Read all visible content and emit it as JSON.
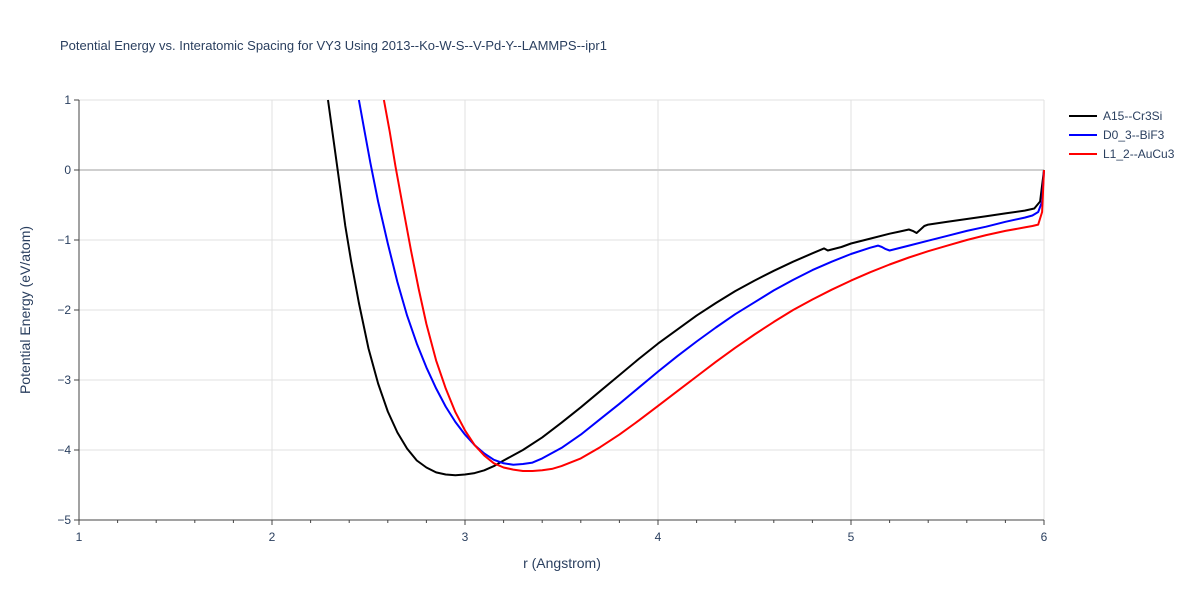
{
  "chart_data": {
    "type": "line",
    "title": "Potential Energy vs. Interatomic Spacing for VY3 Using 2013--Ko-W-S--V-Pd-Y--LAMMPS--ipr1",
    "xlabel": "r (Angstrom)",
    "ylabel": "Potential Energy (eV/atom)",
    "xlim": [
      1,
      6
    ],
    "ylim": [
      -5,
      1
    ],
    "xticks": [
      1,
      2,
      3,
      4,
      5,
      6
    ],
    "xtick_labels": [
      "1",
      "2",
      "3",
      "4",
      "5",
      "6"
    ],
    "yticks": [
      1,
      0,
      -1,
      -2,
      -3,
      -4,
      -5
    ],
    "ytick_labels": [
      "1",
      "0",
      "−1",
      "−2",
      "−3",
      "−4",
      "−5"
    ],
    "grid": true,
    "legend_position": "top-right",
    "series": [
      {
        "name": "A15--Cr3Si",
        "color": "#000000",
        "x": [
          2.29,
          2.32,
          2.35,
          2.38,
          2.41,
          2.45,
          2.5,
          2.55,
          2.6,
          2.65,
          2.7,
          2.75,
          2.8,
          2.85,
          2.9,
          2.95,
          3.0,
          3.05,
          3.1,
          3.15,
          3.2,
          3.3,
          3.4,
          3.5,
          3.6,
          3.7,
          3.8,
          3.9,
          4.0,
          4.1,
          4.2,
          4.3,
          4.4,
          4.5,
          4.6,
          4.7,
          4.8,
          4.86,
          4.88,
          4.95,
          5.0,
          5.1,
          5.2,
          5.25,
          5.3,
          5.32,
          5.34,
          5.36,
          5.38,
          5.4,
          5.5,
          5.6,
          5.7,
          5.8,
          5.9,
          5.95,
          5.98,
          6.0
        ],
        "y": [
          1.0,
          0.4,
          -0.2,
          -0.8,
          -1.3,
          -1.9,
          -2.55,
          -3.05,
          -3.45,
          -3.75,
          -3.98,
          -4.15,
          -4.25,
          -4.32,
          -4.35,
          -4.36,
          -4.35,
          -4.33,
          -4.29,
          -4.23,
          -4.15,
          -4.0,
          -3.82,
          -3.61,
          -3.39,
          -3.16,
          -2.93,
          -2.7,
          -2.48,
          -2.28,
          -2.08,
          -1.9,
          -1.73,
          -1.58,
          -1.44,
          -1.31,
          -1.19,
          -1.12,
          -1.15,
          -1.1,
          -1.05,
          -0.98,
          -0.91,
          -0.88,
          -0.85,
          -0.87,
          -0.9,
          -0.85,
          -0.8,
          -0.78,
          -0.74,
          -0.7,
          -0.66,
          -0.62,
          -0.58,
          -0.55,
          -0.45,
          0.0
        ]
      },
      {
        "name": "D0_3--BiF3",
        "color": "#0000ff",
        "x": [
          2.45,
          2.48,
          2.51,
          2.55,
          2.6,
          2.65,
          2.7,
          2.75,
          2.8,
          2.85,
          2.9,
          2.95,
          3.0,
          3.05,
          3.1,
          3.15,
          3.2,
          3.25,
          3.3,
          3.35,
          3.4,
          3.5,
          3.6,
          3.7,
          3.8,
          3.9,
          4.0,
          4.1,
          4.2,
          4.3,
          4.4,
          4.5,
          4.6,
          4.7,
          4.8,
          4.9,
          5.0,
          5.1,
          5.14,
          5.16,
          5.18,
          5.2,
          5.3,
          5.4,
          5.5,
          5.6,
          5.7,
          5.8,
          5.9,
          5.94,
          5.97,
          5.99,
          6.0
        ],
        "y": [
          1.0,
          0.55,
          0.1,
          -0.45,
          -1.05,
          -1.6,
          -2.08,
          -2.48,
          -2.82,
          -3.12,
          -3.38,
          -3.6,
          -3.78,
          -3.93,
          -4.05,
          -4.14,
          -4.19,
          -4.21,
          -4.2,
          -4.18,
          -4.12,
          -3.97,
          -3.78,
          -3.56,
          -3.34,
          -3.11,
          -2.88,
          -2.66,
          -2.45,
          -2.25,
          -2.06,
          -1.89,
          -1.72,
          -1.57,
          -1.43,
          -1.31,
          -1.2,
          -1.11,
          -1.08,
          -1.1,
          -1.13,
          -1.15,
          -1.08,
          -1.01,
          -0.94,
          -0.87,
          -0.81,
          -0.74,
          -0.68,
          -0.65,
          -0.6,
          -0.45,
          0.0
        ]
      },
      {
        "name": "L1_2--AuCu3",
        "color": "#ff0000",
        "x": [
          2.58,
          2.61,
          2.64,
          2.68,
          2.72,
          2.76,
          2.8,
          2.85,
          2.9,
          2.95,
          3.0,
          3.05,
          3.1,
          3.15,
          3.2,
          3.25,
          3.3,
          3.35,
          3.4,
          3.45,
          3.5,
          3.6,
          3.7,
          3.8,
          3.9,
          4.0,
          4.1,
          4.2,
          4.3,
          4.4,
          4.5,
          4.6,
          4.7,
          4.8,
          4.9,
          5.0,
          5.1,
          5.2,
          5.3,
          5.4,
          5.5,
          5.6,
          5.7,
          5.8,
          5.9,
          5.94,
          5.97,
          5.99,
          6.0
        ],
        "y": [
          1.0,
          0.55,
          0.05,
          -0.55,
          -1.15,
          -1.7,
          -2.2,
          -2.72,
          -3.12,
          -3.46,
          -3.72,
          -3.93,
          -4.08,
          -4.19,
          -4.25,
          -4.28,
          -4.3,
          -4.3,
          -4.29,
          -4.27,
          -4.23,
          -4.12,
          -3.96,
          -3.78,
          -3.58,
          -3.37,
          -3.16,
          -2.95,
          -2.74,
          -2.54,
          -2.35,
          -2.17,
          -2.0,
          -1.85,
          -1.71,
          -1.58,
          -1.46,
          -1.35,
          -1.25,
          -1.16,
          -1.08,
          -1.0,
          -0.93,
          -0.87,
          -0.82,
          -0.8,
          -0.78,
          -0.6,
          0.0
        ]
      }
    ]
  }
}
